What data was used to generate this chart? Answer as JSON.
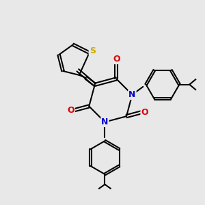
{
  "bg_color": "#e8e8e8",
  "bond_color": "#000000",
  "N_color": "#0000cc",
  "O_color": "#dd0000",
  "S_color": "#ccaa00",
  "line_width": 1.5,
  "fig_bg": "#e8e8e8",
  "xlim": [
    0,
    10
  ],
  "ylim": [
    0,
    10
  ]
}
